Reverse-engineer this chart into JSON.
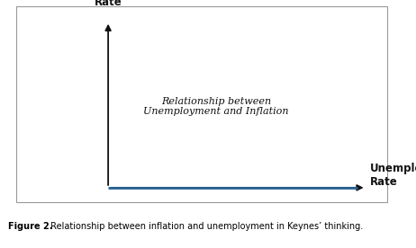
{
  "caption_bold": "Figure 2.",
  "caption_rest": " Relationship between inflation and unemployment in Keynes’ thinking.",
  "ylabel": "Inflation\nRate",
  "xlabel": "Unemployment\nRate",
  "annotation_line1": "Relationship between",
  "annotation_line2": "Unemployment and Inflation",
  "background_color": "#ffffff",
  "border_color": "#999999",
  "axis_color": "#111111",
  "line_color": "#2a6496",
  "font_size_axis_label": 8.5,
  "font_size_annotation": 8.0,
  "font_size_caption_bold": 7.0,
  "font_size_caption_rest": 7.0,
  "line_width": 2.0
}
